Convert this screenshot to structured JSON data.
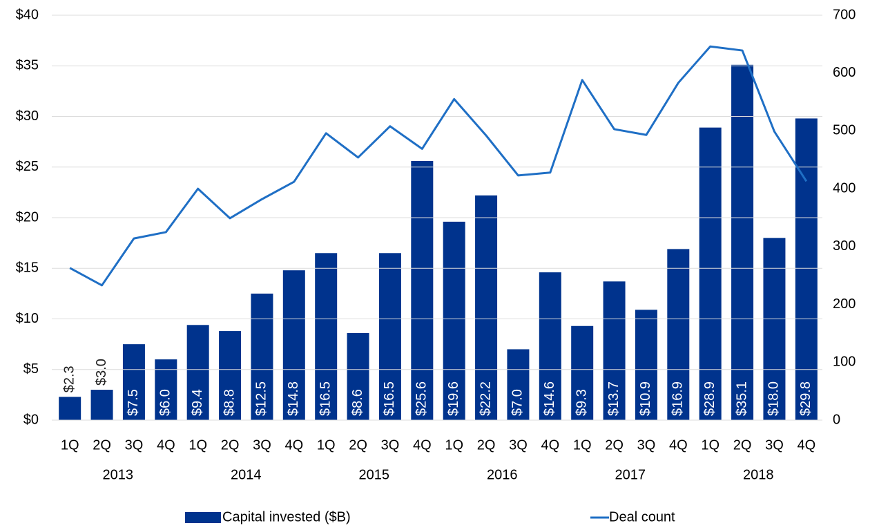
{
  "chart_data": {
    "type": "bar_line",
    "categories": [
      "1Q",
      "2Q",
      "3Q",
      "4Q",
      "1Q",
      "2Q",
      "3Q",
      "4Q",
      "1Q",
      "2Q",
      "3Q",
      "4Q",
      "1Q",
      "2Q",
      "3Q",
      "4Q",
      "1Q",
      "2Q",
      "3Q",
      "4Q",
      "1Q",
      "2Q",
      "3Q",
      "4Q"
    ],
    "groups": [
      "2013",
      "2014",
      "2015",
      "2016",
      "2017",
      "2018"
    ],
    "series": [
      {
        "name": "Capital invested ($B)",
        "type": "bar",
        "color": "#00338d",
        "values": [
          2.3,
          3.0,
          7.5,
          6.0,
          9.4,
          8.8,
          12.5,
          14.8,
          16.5,
          8.6,
          16.5,
          25.6,
          19.6,
          22.2,
          7.0,
          14.6,
          9.3,
          13.7,
          10.9,
          16.9,
          28.9,
          35.1,
          18.0,
          29.8
        ],
        "value_labels": [
          "$2.3",
          "$3.0",
          "$7.5",
          "$6.0",
          "$9.4",
          "$8.8",
          "$12.5",
          "$14.8",
          "$16.5",
          "$8.6",
          "$16.5",
          "$25.6",
          "$19.6",
          "$22.2",
          "$7.0",
          "$14.6",
          "$9.3",
          "$13.7",
          "$10.9",
          "$16.9",
          "$28.9",
          "$35.1",
          "$18.0",
          "$29.8"
        ]
      },
      {
        "name": "Deal count",
        "type": "line",
        "axis": "y2",
        "color": "#1f6fc5",
        "values": [
          263,
          233,
          314,
          325,
          400,
          349,
          382,
          412,
          496,
          454,
          508,
          469,
          555,
          492,
          423,
          428,
          588,
          503,
          493,
          583,
          646,
          639,
          499,
          413
        ]
      }
    ],
    "ylim": [
      0,
      40
    ],
    "yticks": [
      {
        "value": 0,
        "label": "$0"
      },
      {
        "value": 5,
        "label": "$5"
      },
      {
        "value": 10,
        "label": "$10"
      },
      {
        "value": 15,
        "label": "$15"
      },
      {
        "value": 20,
        "label": "$20"
      },
      {
        "value": 25,
        "label": "$25"
      },
      {
        "value": 30,
        "label": "$30"
      },
      {
        "value": 35,
        "label": "$35"
      },
      {
        "value": 40,
        "label": "$40"
      }
    ],
    "y2lim": [
      0,
      700
    ],
    "y2ticks": [
      0,
      100,
      200,
      300,
      400,
      500,
      600,
      700
    ],
    "grid": true,
    "legend": "bottom"
  }
}
